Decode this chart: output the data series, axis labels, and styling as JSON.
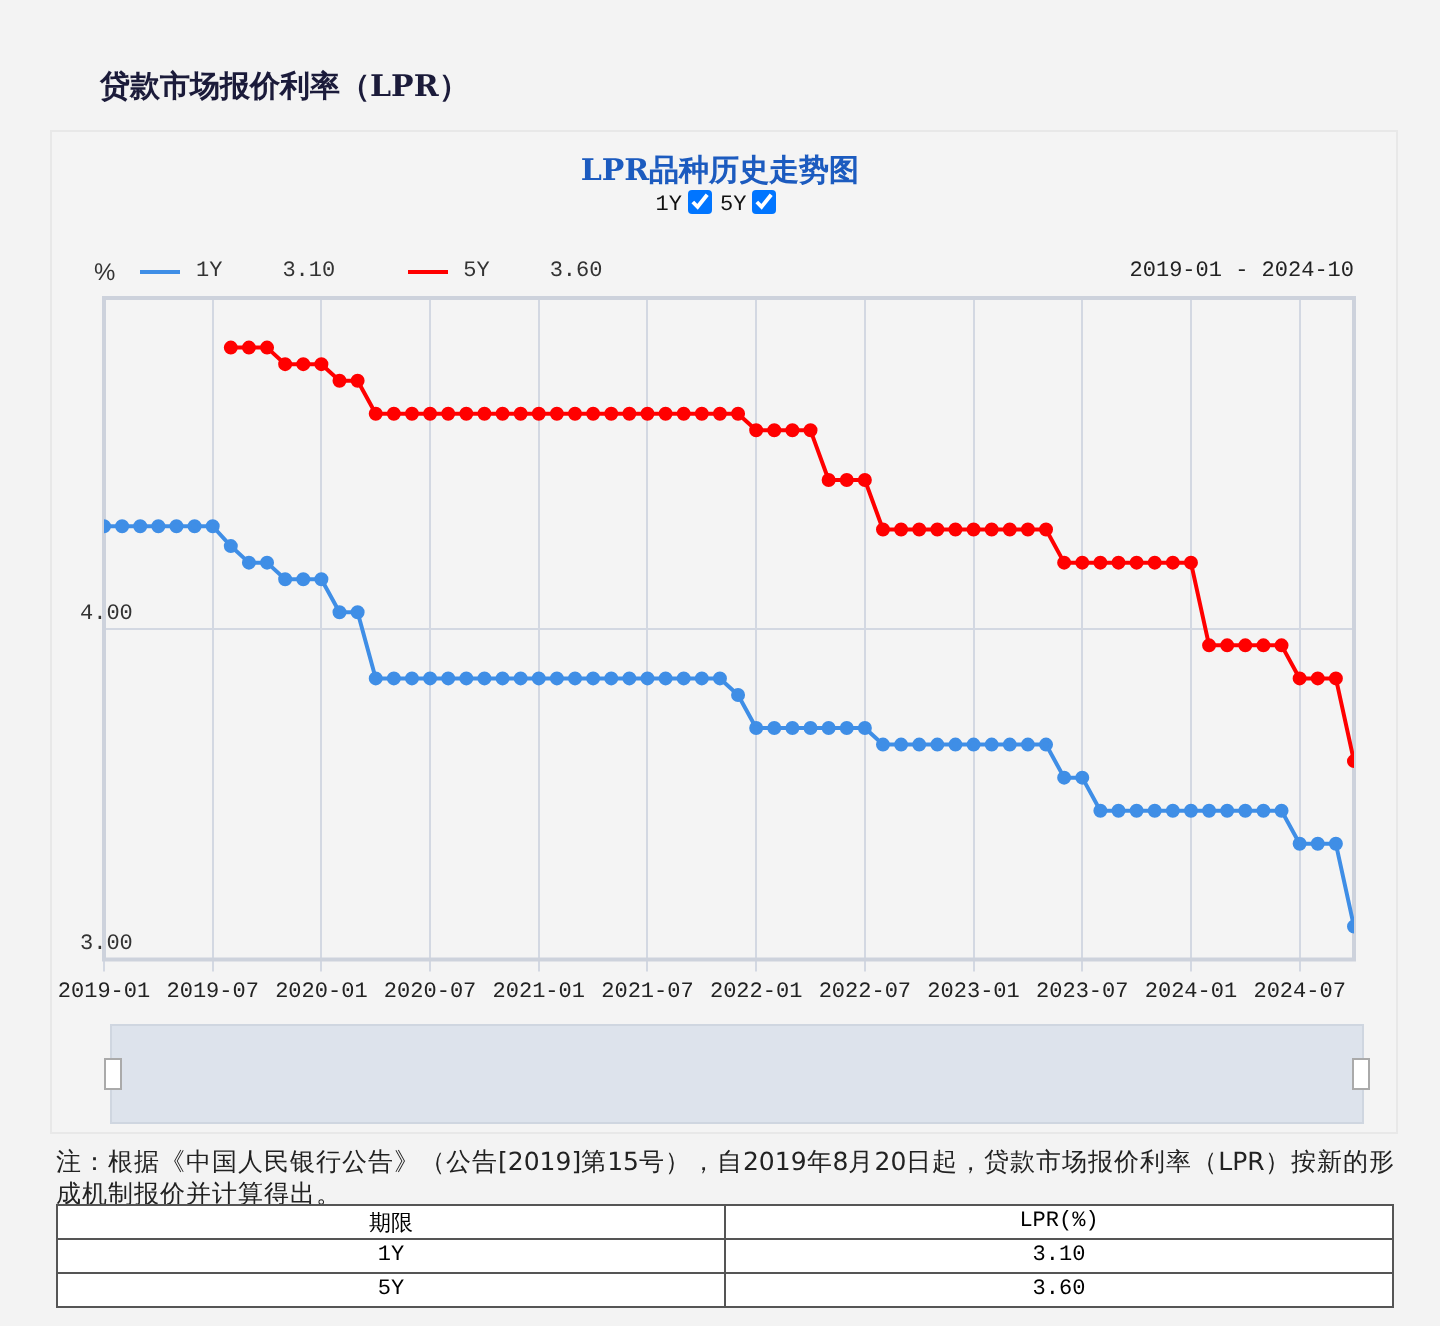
{
  "chart_data": {
    "type": "line",
    "title": "贷款市场报价利率（LPR）",
    "subtitle": "LPR品种历史走势图",
    "ylabel": "%",
    "x": [
      "2019-01",
      "2019-02",
      "2019-03",
      "2019-04",
      "2019-05",
      "2019-06",
      "2019-07",
      "2019-08",
      "2019-09",
      "2019-10",
      "2019-11",
      "2019-12",
      "2020-01",
      "2020-02",
      "2020-03",
      "2020-04",
      "2020-05",
      "2020-06",
      "2020-07",
      "2020-08",
      "2020-09",
      "2020-10",
      "2020-11",
      "2020-12",
      "2021-01",
      "2021-02",
      "2021-03",
      "2021-04",
      "2021-05",
      "2021-06",
      "2021-07",
      "2021-08",
      "2021-09",
      "2021-10",
      "2021-11",
      "2021-12",
      "2022-01",
      "2022-02",
      "2022-03",
      "2022-04",
      "2022-05",
      "2022-06",
      "2022-07",
      "2022-08",
      "2022-09",
      "2022-10",
      "2022-11",
      "2022-12",
      "2023-01",
      "2023-02",
      "2023-03",
      "2023-04",
      "2023-05",
      "2023-06",
      "2023-07",
      "2023-08",
      "2023-09",
      "2023-10",
      "2023-11",
      "2023-12",
      "2024-01",
      "2024-02",
      "2024-03",
      "2024-04",
      "2024-05",
      "2024-06",
      "2024-07",
      "2024-08",
      "2024-09",
      "2024-10"
    ],
    "series": [
      {
        "name": "1Y",
        "color": "#3f8ee6",
        "values": [
          4.31,
          4.31,
          4.31,
          4.31,
          4.31,
          4.31,
          4.31,
          4.25,
          4.2,
          4.2,
          4.15,
          4.15,
          4.15,
          4.05,
          4.05,
          3.85,
          3.85,
          3.85,
          3.85,
          3.85,
          3.85,
          3.85,
          3.85,
          3.85,
          3.85,
          3.85,
          3.85,
          3.85,
          3.85,
          3.85,
          3.85,
          3.85,
          3.85,
          3.85,
          3.85,
          3.8,
          3.7,
          3.7,
          3.7,
          3.7,
          3.7,
          3.7,
          3.7,
          3.65,
          3.65,
          3.65,
          3.65,
          3.65,
          3.65,
          3.65,
          3.65,
          3.65,
          3.65,
          3.55,
          3.55,
          3.45,
          3.45,
          3.45,
          3.45,
          3.45,
          3.45,
          3.45,
          3.45,
          3.45,
          3.45,
          3.45,
          3.35,
          3.35,
          3.35,
          3.1
        ]
      },
      {
        "name": "5Y",
        "color": "#ff0000",
        "values": [
          null,
          null,
          null,
          null,
          null,
          null,
          null,
          4.85,
          4.85,
          4.85,
          4.8,
          4.8,
          4.8,
          4.75,
          4.75,
          4.65,
          4.65,
          4.65,
          4.65,
          4.65,
          4.65,
          4.65,
          4.65,
          4.65,
          4.65,
          4.65,
          4.65,
          4.65,
          4.65,
          4.65,
          4.65,
          4.65,
          4.65,
          4.65,
          4.65,
          4.65,
          4.6,
          4.6,
          4.6,
          4.6,
          4.45,
          4.45,
          4.45,
          4.3,
          4.3,
          4.3,
          4.3,
          4.3,
          4.3,
          4.3,
          4.3,
          4.3,
          4.3,
          4.2,
          4.2,
          4.2,
          4.2,
          4.2,
          4.2,
          4.2,
          4.2,
          3.95,
          3.95,
          3.95,
          3.95,
          3.95,
          3.85,
          3.85,
          3.85,
          3.6
        ]
      }
    ],
    "xlim": [
      "2019-01",
      "2024-10"
    ],
    "xticks": [
      "2019-01",
      "2019-07",
      "2020-01",
      "2020-07",
      "2021-01",
      "2021-07",
      "2022-01",
      "2022-07",
      "2023-01",
      "2023-07",
      "2024-01",
      "2024-07"
    ],
    "ylim": [
      3,
      5
    ],
    "yticks": [
      {
        "value": 3,
        "label": "3.00"
      },
      {
        "value": 4,
        "label": "4.00"
      }
    ],
    "grid": true,
    "legend": "top left",
    "marker": "circle",
    "line_style": "solid",
    "annotations": [
      "2019-01 - 2024-10",
      "注：根据《中国人民银行公告》（公告[2019]第15号），自2019年8月20日起，贷款市场报价利率（LPR）按新的形成机制报价并计算得出。",
      "期限",
      "LPR(%)",
      "3.10",
      "3.60"
    ]
  }
}
